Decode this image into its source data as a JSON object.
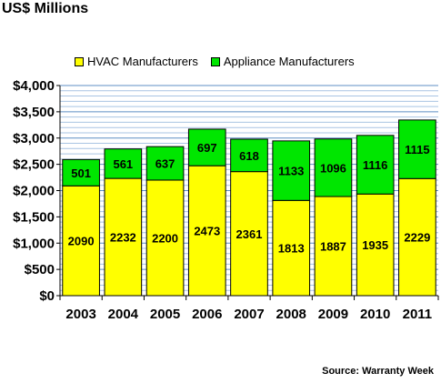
{
  "chart_data": {
    "type": "bar",
    "stacked": true,
    "title": "US$ Millions",
    "categories": [
      "2003",
      "2004",
      "2005",
      "2006",
      "2007",
      "2008",
      "2009",
      "2010",
      "2011"
    ],
    "series": [
      {
        "name": "HVAC Manufacturers",
        "color": "#ffff00",
        "values": [
          2090,
          2232,
          2200,
          2473,
          2361,
          1813,
          1887,
          1935,
          2229
        ]
      },
      {
        "name": "Appliance Manufacturers",
        "color": "#00e600",
        "values": [
          501,
          561,
          637,
          697,
          618,
          1133,
          1096,
          1116,
          1115
        ]
      }
    ],
    "ylim": [
      0,
      4000
    ],
    "y_ticks": [
      "$0",
      "$500",
      "$1,000",
      "$1,500",
      "$2,000",
      "$2,500",
      "$3,000",
      "$3,500",
      "$4,000"
    ],
    "grid": true,
    "legend_position": "top",
    "source": "Source: Warranty Week"
  }
}
